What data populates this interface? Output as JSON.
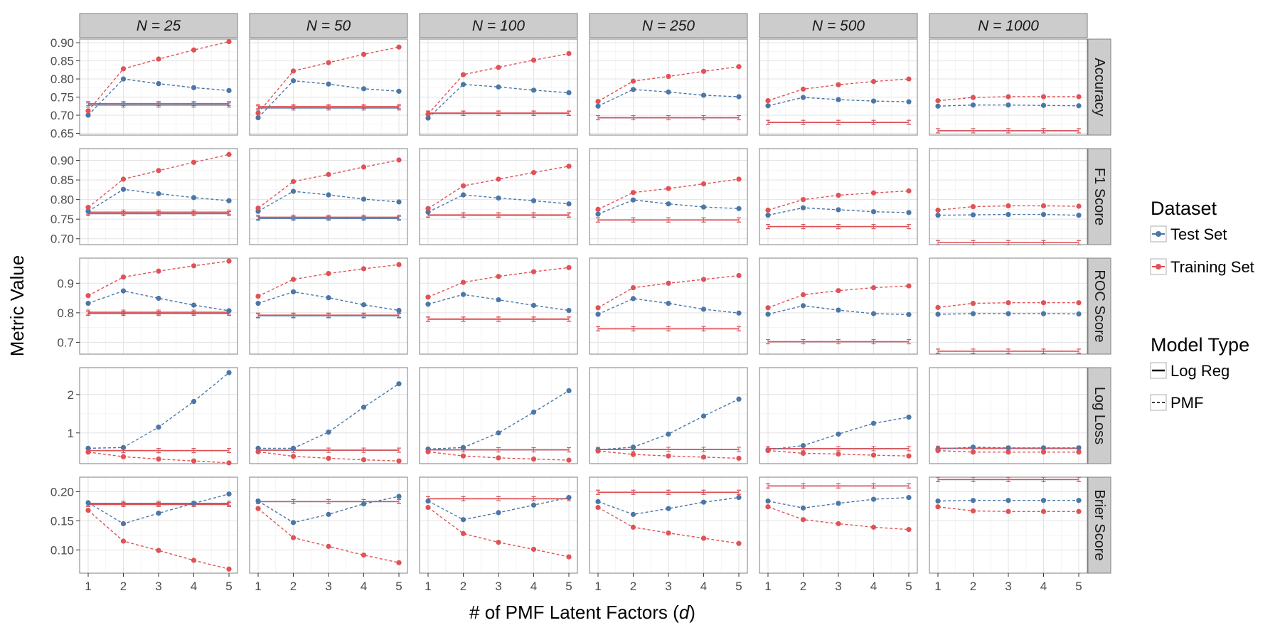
{
  "chart_data": {
    "type": "line",
    "title": "",
    "xlabel_pre": "# of PMF Latent Factors (",
    "xlabel_var": "d",
    "xlabel_post": ")",
    "ylabel": "Metric Value",
    "x": [
      1,
      2,
      3,
      4,
      5
    ],
    "xticks": [
      "1",
      "2",
      "3",
      "4",
      "5"
    ],
    "facet_cols": [
      "N = 25",
      "N = 50",
      "N = 100",
      "N = 250",
      "N = 500",
      "N = 1000"
    ],
    "facet_rows": [
      {
        "label": "Accuracy",
        "ylim": [
          0.645,
          0.91
        ],
        "ticks": [
          "0.65",
          "0.70",
          "0.75",
          "0.80",
          "0.85",
          "0.90"
        ],
        "tickvals": [
          0.65,
          0.7,
          0.75,
          0.8,
          0.85,
          0.9
        ]
      },
      {
        "label": "F1 Score",
        "ylim": [
          0.685,
          0.93
        ],
        "ticks": [
          "0.70",
          "0.75",
          "0.80",
          "0.85",
          "0.90"
        ],
        "tickvals": [
          0.7,
          0.75,
          0.8,
          0.85,
          0.9
        ]
      },
      {
        "label": "ROC Score",
        "ylim": [
          0.66,
          0.985
        ],
        "ticks": [
          "0.7",
          "0.8",
          "0.9"
        ],
        "tickvals": [
          0.7,
          0.8,
          0.9
        ]
      },
      {
        "label": "Log Loss",
        "ylim": [
          0.2,
          2.7
        ],
        "ticks": [
          "1",
          "2"
        ],
        "tickvals": [
          1,
          2
        ]
      },
      {
        "label": "Brier Score",
        "ylim": [
          0.06,
          0.225
        ],
        "ticks": [
          "0.10",
          "0.15",
          "0.20"
        ],
        "tickvals": [
          0.1,
          0.15,
          0.2
        ]
      }
    ],
    "colors": {
      "test": "#4a77a8",
      "train": "#e05256"
    },
    "legend": {
      "dataset_title": "Dataset",
      "dataset_items": [
        "Test Set",
        "Training Set"
      ],
      "model_title": "Model Type",
      "model_items": [
        "Log Reg",
        "PMF"
      ],
      "placement": "right"
    },
    "panels": [
      [
        {
          "pmf_test": [
            0.7,
            0.8,
            0.787,
            0.776,
            0.768
          ],
          "pmf_train": [
            0.712,
            0.828,
            0.855,
            0.88,
            0.903
          ],
          "lr_test": 0.728,
          "lr_train": 0.732
        },
        {
          "pmf_test": [
            0.693,
            0.795,
            0.786,
            0.773,
            0.766
          ],
          "pmf_train": [
            0.706,
            0.822,
            0.845,
            0.868,
            0.888
          ],
          "lr_test": 0.72,
          "lr_train": 0.724
        },
        {
          "pmf_test": [
            0.692,
            0.785,
            0.778,
            0.769,
            0.762
          ],
          "pmf_train": [
            0.703,
            0.812,
            0.832,
            0.852,
            0.87
          ],
          "lr_test": 0.705,
          "lr_train": 0.706
        },
        {
          "pmf_test": [
            0.725,
            0.771,
            0.764,
            0.755,
            0.751
          ],
          "pmf_train": [
            0.738,
            0.794,
            0.807,
            0.821,
            0.834
          ],
          "lr_test": 0.693,
          "lr_train": 0.693
        },
        {
          "pmf_test": [
            0.726,
            0.749,
            0.743,
            0.739,
            0.737
          ],
          "pmf_train": [
            0.74,
            0.772,
            0.784,
            0.793,
            0.8
          ],
          "lr_test": 0.68,
          "lr_train": 0.68
        },
        {
          "pmf_test": [
            0.725,
            0.728,
            0.728,
            0.727,
            0.726
          ],
          "pmf_train": [
            0.74,
            0.749,
            0.751,
            0.751,
            0.751
          ],
          "lr_test": 0.657,
          "lr_train": 0.657
        }
      ],
      [
        {
          "pmf_test": [
            0.77,
            0.826,
            0.815,
            0.805,
            0.797
          ],
          "pmf_train": [
            0.78,
            0.852,
            0.874,
            0.895,
            0.915
          ],
          "lr_test": 0.764,
          "lr_train": 0.768
        },
        {
          "pmf_test": [
            0.77,
            0.821,
            0.812,
            0.801,
            0.794
          ],
          "pmf_train": [
            0.778,
            0.846,
            0.864,
            0.883,
            0.901
          ],
          "lr_test": 0.752,
          "lr_train": 0.755
        },
        {
          "pmf_test": [
            0.768,
            0.812,
            0.804,
            0.797,
            0.789
          ],
          "pmf_train": [
            0.777,
            0.835,
            0.852,
            0.869,
            0.885
          ],
          "lr_test": 0.76,
          "lr_train": 0.761
        },
        {
          "pmf_test": [
            0.763,
            0.799,
            0.789,
            0.781,
            0.777
          ],
          "pmf_train": [
            0.775,
            0.818,
            0.828,
            0.84,
            0.852
          ],
          "lr_test": 0.748,
          "lr_train": 0.748
        },
        {
          "pmf_test": [
            0.76,
            0.779,
            0.774,
            0.769,
            0.767
          ],
          "pmf_train": [
            0.773,
            0.8,
            0.811,
            0.817,
            0.822
          ],
          "lr_test": 0.731,
          "lr_train": 0.731
        },
        {
          "pmf_test": [
            0.76,
            0.761,
            0.762,
            0.762,
            0.76
          ],
          "pmf_train": [
            0.773,
            0.782,
            0.784,
            0.784,
            0.783
          ],
          "lr_test": 0.69,
          "lr_train": 0.69
        }
      ],
      [
        {
          "pmf_test": [
            0.832,
            0.874,
            0.849,
            0.826,
            0.807
          ],
          "pmf_train": [
            0.858,
            0.921,
            0.941,
            0.959,
            0.975
          ],
          "lr_test": 0.798,
          "lr_train": 0.802
        },
        {
          "pmf_test": [
            0.832,
            0.871,
            0.851,
            0.827,
            0.808
          ],
          "pmf_train": [
            0.856,
            0.913,
            0.933,
            0.949,
            0.963
          ],
          "lr_test": 0.79,
          "lr_train": 0.792
        },
        {
          "pmf_test": [
            0.829,
            0.862,
            0.844,
            0.825,
            0.808
          ],
          "pmf_train": [
            0.853,
            0.903,
            0.923,
            0.939,
            0.953
          ],
          "lr_test": 0.778,
          "lr_train": 0.779
        },
        {
          "pmf_test": [
            0.795,
            0.848,
            0.832,
            0.812,
            0.799
          ],
          "pmf_train": [
            0.817,
            0.885,
            0.9,
            0.913,
            0.926
          ],
          "lr_test": 0.746,
          "lr_train": 0.746
        },
        {
          "pmf_test": [
            0.795,
            0.824,
            0.809,
            0.797,
            0.794
          ],
          "pmf_train": [
            0.817,
            0.861,
            0.875,
            0.885,
            0.891
          ],
          "lr_test": 0.702,
          "lr_train": 0.702
        },
        {
          "pmf_test": [
            0.795,
            0.797,
            0.797,
            0.797,
            0.796
          ],
          "pmf_train": [
            0.818,
            0.832,
            0.834,
            0.834,
            0.834
          ],
          "lr_test": 0.67,
          "lr_train": 0.67
        }
      ],
      [
        {
          "pmf_test": [
            0.6,
            0.62,
            1.15,
            1.82,
            2.57
          ],
          "pmf_train": [
            0.5,
            0.38,
            0.32,
            0.27,
            0.22
          ],
          "lr_test": 0.54,
          "lr_train": 0.54
        },
        {
          "pmf_test": [
            0.6,
            0.6,
            1.02,
            1.67,
            2.28
          ],
          "pmf_train": [
            0.51,
            0.39,
            0.34,
            0.3,
            0.27
          ],
          "lr_test": 0.55,
          "lr_train": 0.55
        },
        {
          "pmf_test": [
            0.58,
            0.62,
            1.0,
            1.54,
            2.1
          ],
          "pmf_train": [
            0.51,
            0.4,
            0.35,
            0.32,
            0.29
          ],
          "lr_test": 0.56,
          "lr_train": 0.56
        },
        {
          "pmf_test": [
            0.56,
            0.63,
            0.97,
            1.44,
            1.88
          ],
          "pmf_train": [
            0.53,
            0.44,
            0.4,
            0.37,
            0.34
          ],
          "lr_test": 0.57,
          "lr_train": 0.57
        },
        {
          "pmf_test": [
            0.56,
            0.67,
            0.97,
            1.25,
            1.41
          ],
          "pmf_train": [
            0.54,
            0.47,
            0.45,
            0.42,
            0.4
          ],
          "lr_test": 0.59,
          "lr_train": 0.59
        },
        {
          "pmf_test": [
            0.58,
            0.63,
            0.61,
            0.61,
            0.61
          ],
          "pmf_train": [
            0.54,
            0.5,
            0.5,
            0.5,
            0.5
          ],
          "lr_test": 0.6,
          "lr_train": 0.6
        }
      ],
      [
        {
          "pmf_test": [
            0.181,
            0.145,
            0.163,
            0.18,
            0.196
          ],
          "pmf_train": [
            0.168,
            0.115,
            0.099,
            0.082,
            0.067
          ],
          "lr_test": 0.18,
          "lr_train": 0.178
        },
        {
          "pmf_test": [
            0.184,
            0.147,
            0.161,
            0.179,
            0.192
          ],
          "pmf_train": [
            0.171,
            0.121,
            0.106,
            0.091,
            0.078
          ],
          "lr_test": 0.183,
          "lr_train": 0.183
        },
        {
          "pmf_test": [
            0.184,
            0.152,
            0.164,
            0.177,
            0.19
          ],
          "pmf_train": [
            0.173,
            0.128,
            0.113,
            0.101,
            0.088
          ],
          "lr_test": 0.188,
          "lr_train": 0.188
        },
        {
          "pmf_test": [
            0.183,
            0.161,
            0.171,
            0.182,
            0.19
          ],
          "pmf_train": [
            0.173,
            0.139,
            0.129,
            0.12,
            0.111
          ],
          "lr_test": 0.199,
          "lr_train": 0.199
        },
        {
          "pmf_test": [
            0.184,
            0.172,
            0.18,
            0.187,
            0.19
          ],
          "pmf_train": [
            0.174,
            0.152,
            0.145,
            0.139,
            0.135
          ],
          "lr_test": 0.21,
          "lr_train": 0.21
        },
        {
          "pmf_test": [
            0.184,
            0.185,
            0.185,
            0.185,
            0.185
          ],
          "pmf_train": [
            0.174,
            0.167,
            0.166,
            0.166,
            0.166
          ],
          "lr_test": 0.221,
          "lr_train": 0.221
        }
      ]
    ]
  }
}
